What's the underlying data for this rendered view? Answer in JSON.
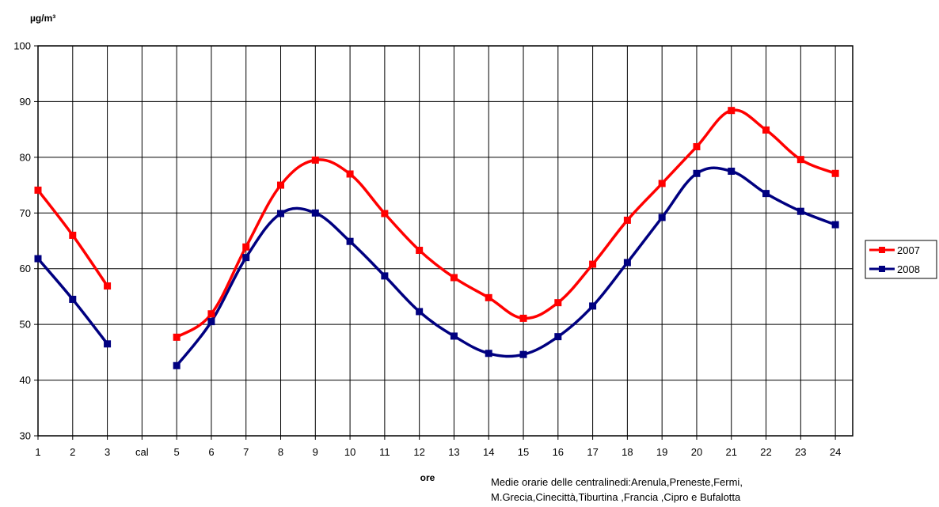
{
  "chart_data": {
    "type": "line",
    "ylabel": "µg/m³",
    "xlabel": "ore",
    "ylim": [
      30,
      100
    ],
    "yticks": [
      30,
      40,
      50,
      60,
      70,
      80,
      90,
      100
    ],
    "categories": [
      "1",
      "2",
      "3",
      "cal",
      "5",
      "6",
      "7",
      "8",
      "9",
      "10",
      "11",
      "12",
      "13",
      "14",
      "15",
      "16",
      "17",
      "18",
      "19",
      "20",
      "21",
      "22",
      "23",
      "24"
    ],
    "grid": true,
    "legend_position": "right",
    "annotation": [
      "Medie orarie delle centralinedi:Arenula,Preneste,Fermi,",
      "M.Grecia,Cinecittà,Tiburtina ,Francia ,Cipro e Bufalotta"
    ],
    "series": [
      {
        "name": "2007",
        "color": "#ff0000",
        "values": [
          74.1,
          66.0,
          56.9,
          null,
          47.7,
          51.9,
          63.9,
          75.0,
          79.5,
          77.0,
          69.9,
          63.3,
          58.4,
          54.8,
          51.1,
          53.9,
          60.8,
          68.7,
          75.3,
          81.9,
          88.4,
          84.9,
          79.6,
          77.1
        ]
      },
      {
        "name": "2008",
        "color": "#000080",
        "values": [
          61.8,
          54.5,
          46.5,
          null,
          42.6,
          50.5,
          62.0,
          69.9,
          70.0,
          64.9,
          58.7,
          52.3,
          47.9,
          44.8,
          44.6,
          47.8,
          53.3,
          61.1,
          69.2,
          77.1,
          77.5,
          73.5,
          70.3,
          67.9
        ]
      }
    ]
  }
}
